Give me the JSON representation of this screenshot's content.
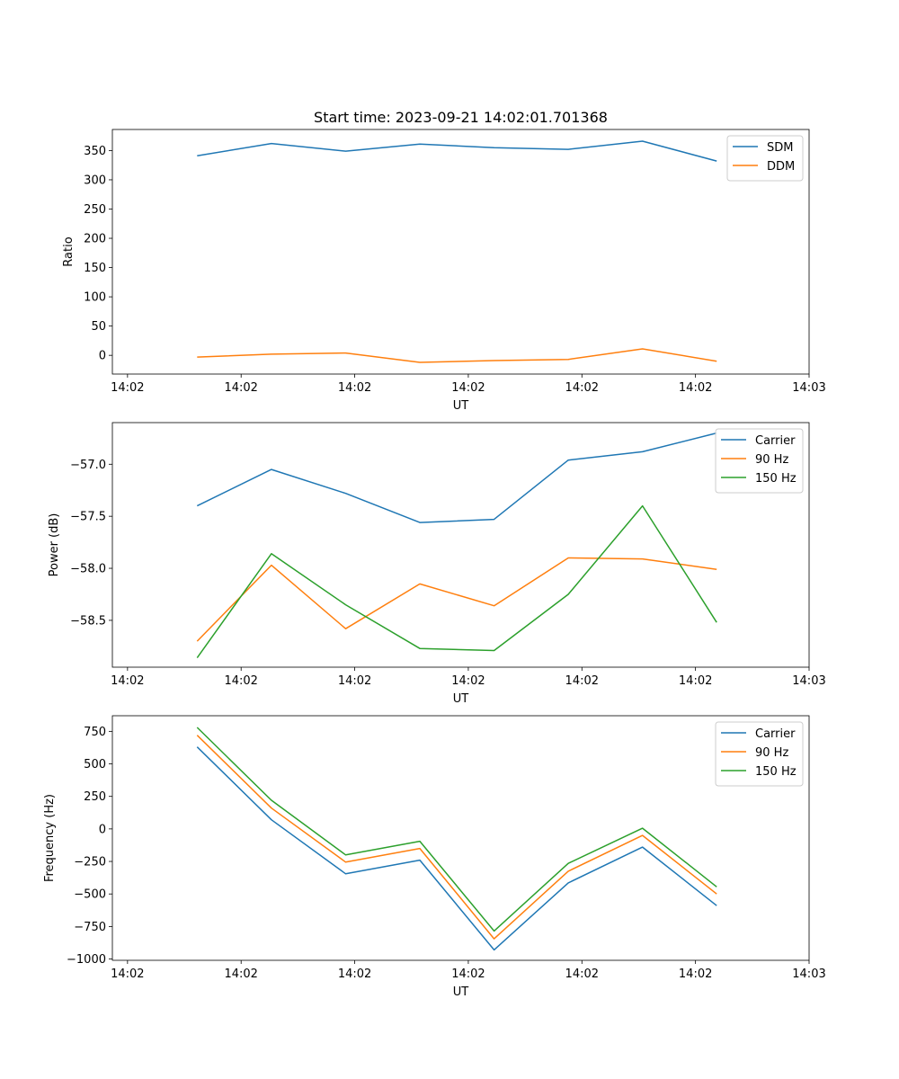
{
  "title": "Start time: 2023-09-21 14:02:01.701368",
  "colors": {
    "blue": "#1f77b4",
    "orange": "#ff7f0e",
    "green": "#2ca02c"
  },
  "chart_data": [
    {
      "id": "ratio",
      "type": "line",
      "title": "Start time: 2023-09-21 14:02:01.701368",
      "xlabel": "UT",
      "ylabel": "Ratio",
      "xlim": [
        0,
        9.2
      ],
      "ylim": [
        -32,
        386
      ],
      "x_tick_positions": [
        0.2,
        1.7,
        3.2,
        4.7,
        6.2,
        7.7,
        9.2
      ],
      "x_tick_labels": [
        "14:02",
        "14:02",
        "14:02",
        "14:02",
        "14:02",
        "14:02",
        "14:03"
      ],
      "y_ticks": [
        0,
        50,
        100,
        150,
        200,
        250,
        300,
        350
      ],
      "y_tick_labels": [
        "0",
        "50",
        "100",
        "150",
        "200",
        "250",
        "300",
        "350"
      ],
      "x": [
        1.12,
        2.1,
        3.08,
        4.06,
        5.04,
        6.02,
        7.0,
        7.98
      ],
      "legend_position": "top-right",
      "series": [
        {
          "name": "SDM",
          "color": "#1f77b4",
          "values": [
            341,
            362,
            349,
            361,
            355,
            352,
            366,
            332
          ]
        },
        {
          "name": "DDM",
          "color": "#ff7f0e",
          "values": [
            -3,
            2,
            4,
            -12,
            -9,
            -7,
            11,
            -10
          ]
        }
      ]
    },
    {
      "id": "power",
      "type": "line",
      "title": "",
      "xlabel": "UT",
      "ylabel": "Power (dB)",
      "xlim": [
        0,
        9.2
      ],
      "ylim": [
        -58.95,
        -56.6
      ],
      "x_tick_positions": [
        0.2,
        1.7,
        3.2,
        4.7,
        6.2,
        7.7,
        9.2
      ],
      "x_tick_labels": [
        "14:02",
        "14:02",
        "14:02",
        "14:02",
        "14:02",
        "14:02",
        "14:03"
      ],
      "y_ticks": [
        -58.5,
        -58.0,
        -57.5,
        -57.0
      ],
      "y_tick_labels": [
        "−58.5",
        "−58.0",
        "−57.5",
        "−57.0"
      ],
      "x": [
        1.12,
        2.1,
        3.08,
        4.06,
        5.04,
        6.02,
        7.0,
        7.98
      ],
      "legend_position": "top-right",
      "series": [
        {
          "name": "Carrier",
          "color": "#1f77b4",
          "values": [
            -57.4,
            -57.05,
            -57.28,
            -57.56,
            -57.53,
            -56.96,
            -56.88,
            -56.7
          ]
        },
        {
          "name": "90 Hz",
          "color": "#ff7f0e",
          "values": [
            -58.7,
            -57.97,
            -58.58,
            -58.15,
            -58.36,
            -57.9,
            -57.91,
            -58.01
          ]
        },
        {
          "name": "150 Hz",
          "color": "#2ca02c",
          "values": [
            -58.86,
            -57.86,
            -58.35,
            -58.77,
            -58.79,
            -58.25,
            -57.4,
            -58.52
          ]
        }
      ]
    },
    {
      "id": "frequency",
      "type": "line",
      "title": "",
      "xlabel": "UT",
      "ylabel": "Frequency (Hz)",
      "xlim": [
        0,
        9.2
      ],
      "ylim": [
        -1010,
        870
      ],
      "x_tick_positions": [
        0.2,
        1.7,
        3.2,
        4.7,
        6.2,
        7.7,
        9.2
      ],
      "x_tick_labels": [
        "14:02",
        "14:02",
        "14:02",
        "14:02",
        "14:02",
        "14:02",
        "14:03"
      ],
      "y_ticks": [
        -1000,
        -750,
        -500,
        -250,
        0,
        250,
        500,
        750
      ],
      "y_tick_labels": [
        "−1000",
        "−750",
        "−500",
        "−250",
        "0",
        "250",
        "500",
        "750"
      ],
      "x": [
        1.12,
        2.1,
        3.08,
        4.06,
        5.04,
        6.02,
        7.0,
        7.98
      ],
      "legend_position": "top-right",
      "series": [
        {
          "name": "Carrier",
          "color": "#1f77b4",
          "values": [
            630,
            70,
            -345,
            -240,
            -930,
            -415,
            -140,
            -590
          ]
        },
        {
          "name": "90 Hz",
          "color": "#ff7f0e",
          "values": [
            720,
            160,
            -255,
            -150,
            -845,
            -325,
            -50,
            -500
          ]
        },
        {
          "name": "150 Hz",
          "color": "#2ca02c",
          "values": [
            780,
            220,
            -200,
            -95,
            -785,
            -265,
            5,
            -445
          ]
        }
      ]
    }
  ]
}
